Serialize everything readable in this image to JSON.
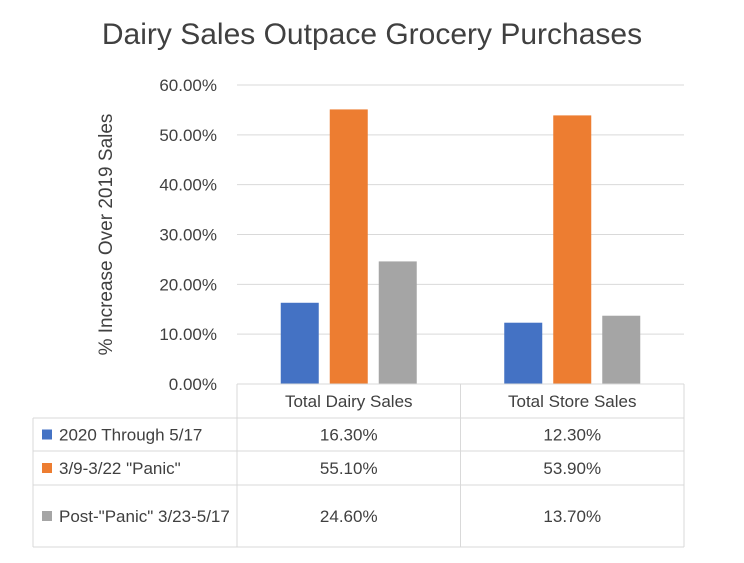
{
  "chart_data": {
    "type": "bar",
    "title": "Dairy Sales Outpace Grocery Purchases",
    "ylabel": "% Increase Over 2019 Sales",
    "xlabel": "",
    "categories": [
      "Total Dairy Sales",
      "Total Store Sales"
    ],
    "ylim": [
      0,
      60
    ],
    "yticks": [
      "0.00%",
      "10.00%",
      "20.00%",
      "30.00%",
      "40.00%",
      "50.00%",
      "60.00%"
    ],
    "grid": true,
    "legend": "data-table",
    "series": [
      {
        "name": "2020 Through 5/17",
        "values": [
          16.3,
          12.3
        ],
        "labels": [
          "16.30%",
          "12.30%"
        ],
        "color": "#4472C4"
      },
      {
        "name": "3/9-3/22 \"Panic\"",
        "values": [
          55.1,
          53.9
        ],
        "labels": [
          "55.10%",
          "53.90%"
        ],
        "color": "#ED7D31"
      },
      {
        "name": "Post-\"Panic\" 3/23-5/17",
        "values": [
          24.6,
          13.7
        ],
        "labels": [
          "24.60%",
          "13.70%"
        ],
        "color": "#A5A5A5"
      }
    ]
  }
}
